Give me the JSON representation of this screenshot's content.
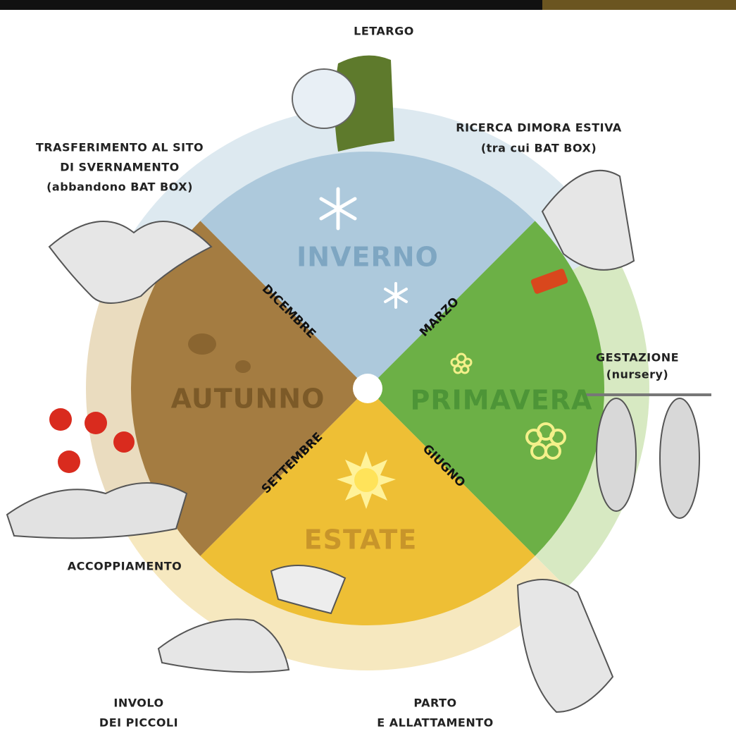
{
  "activities": [
    {
      "lines": [
        "LETARGO"
      ]
    },
    {
      "lines": [
        "RICERCA DIMORA ESTIVA",
        "(tra cui BAT BOX)"
      ]
    },
    {
      "lines": [
        "TRASFERIMENTO AL SITO",
        "DI SVERNAMENTO",
        "(abbandono BAT BOX)"
      ]
    },
    {
      "lines": [
        "GESTAZIONE",
        "(nursery)"
      ]
    },
    {
      "lines": [
        "ACCOPPIAMENTO"
      ]
    },
    {
      "lines": [
        "INVOLO",
        "DEI PICCOLI"
      ]
    },
    {
      "lines": [
        "PARTO",
        "E ALLATTAMENTO"
      ]
    }
  ],
  "seasons": [
    {
      "name": "INVERNO",
      "month": "MARZO"
    },
    {
      "name": "PRIMAVERA",
      "month": "GIUGNO"
    },
    {
      "name": "ESTATE",
      "month": "SETTEMBRE"
    },
    {
      "name": "AUTUNNO",
      "month": "DICEMBRE"
    }
  ]
}
